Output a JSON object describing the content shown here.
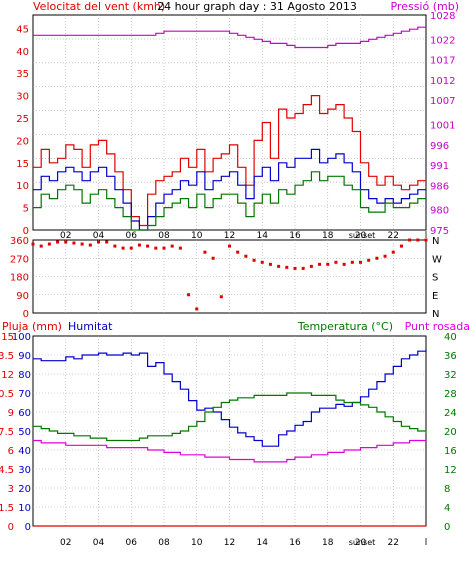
{
  "header": {
    "left_label": "Velocitat del vent (kmh)",
    "title": "24 hour graph day : 31 Agosto 2013",
    "right_label": "Pressió (mb)"
  },
  "x_axis": {
    "ticks": [
      "02",
      "04",
      "06",
      "08",
      "10",
      "12",
      "14",
      "16",
      "18",
      "20",
      "22"
    ],
    "sunset_label": "sunset"
  },
  "colors": {
    "wind_avg": "#0000cc",
    "wind_gust": "#e00000",
    "wind_low": "#007700",
    "pressure": "#cc00cc",
    "direction": "#e00000",
    "humidity": "#0000cc",
    "temperature": "#007700",
    "dewpoint": "#dd00dd",
    "rain": "#e00000",
    "grid": "#aaaaaa"
  },
  "chart_data": [
    {
      "type": "line",
      "ylabel_left": "Velocitat del vent (kmh)",
      "ylabel_right": "Pressió (mb)",
      "left_ticks": [
        "0",
        "5",
        "10",
        "15",
        "20",
        "25",
        "30",
        "35",
        "40",
        "45"
      ],
      "right_ticks": [
        "975",
        "980",
        "986",
        "991",
        "996",
        "1001",
        "1007",
        "1012",
        "1017",
        "1022",
        "1028"
      ],
      "ylim": [
        0,
        48
      ],
      "y2lim": [
        975,
        1028
      ],
      "x": [
        0,
        0.5,
        1,
        1.5,
        2,
        2.5,
        3,
        3.5,
        4,
        4.5,
        5,
        5.5,
        6,
        6.5,
        7,
        7.5,
        8,
        8.5,
        9,
        9.5,
        10,
        10.5,
        11,
        11.5,
        12,
        12.5,
        13,
        13.5,
        14,
        14.5,
        15,
        15.5,
        16,
        16.5,
        17,
        17.5,
        18,
        18.5,
        19,
        19.5,
        20,
        20.5,
        21,
        21.5,
        22,
        22.5,
        23,
        23.5,
        24
      ],
      "series": [
        {
          "role": "gust",
          "values": [
            14,
            18,
            15,
            16,
            19,
            18,
            14,
            19,
            20,
            17,
            13,
            9,
            3,
            1,
            8,
            11,
            12,
            13,
            16,
            14,
            18,
            13,
            16,
            17,
            19,
            14,
            10,
            20,
            24,
            16,
            27,
            25,
            26,
            28,
            30,
            26,
            27,
            28,
            25,
            22,
            15,
            12,
            10,
            12,
            10,
            9,
            10,
            11,
            11
          ]
        },
        {
          "role": "average",
          "values": [
            9,
            12,
            11,
            13,
            14,
            13,
            11,
            13,
            14,
            12,
            9,
            6,
            2,
            0,
            3,
            6,
            8,
            9,
            11,
            10,
            13,
            9,
            11,
            12,
            13,
            10,
            7,
            12,
            14,
            11,
            15,
            14,
            16,
            16,
            18,
            15,
            16,
            17,
            15,
            13,
            9,
            7,
            6,
            7,
            6,
            7,
            8,
            9,
            9
          ]
        },
        {
          "role": "low",
          "values": [
            5,
            8,
            7,
            9,
            10,
            9,
            6,
            8,
            9,
            7,
            5,
            3,
            0,
            0,
            1,
            3,
            5,
            6,
            7,
            5,
            8,
            5,
            7,
            8,
            8,
            6,
            3,
            6,
            8,
            6,
            9,
            8,
            10,
            11,
            13,
            11,
            12,
            12,
            10,
            9,
            5,
            4,
            4,
            6,
            5,
            5,
            6,
            7,
            7
          ]
        },
        {
          "role": "pressure",
          "axis": "right",
          "values": [
            1023,
            1023,
            1023,
            1023,
            1023,
            1023,
            1023,
            1023,
            1023,
            1023,
            1023,
            1023,
            1023,
            1023,
            1023,
            1023.5,
            1024,
            1024,
            1024,
            1024,
            1024,
            1024,
            1024,
            1024,
            1023.5,
            1023,
            1022.5,
            1022,
            1021.5,
            1021,
            1021,
            1020.5,
            1020,
            1020,
            1020,
            1020,
            1020.5,
            1021,
            1021,
            1021,
            1021.5,
            1022,
            1022.5,
            1023,
            1023.5,
            1024,
            1024.5,
            1025,
            1025
          ]
        }
      ]
    },
    {
      "type": "scatter",
      "left_ticks": [
        "0",
        "90",
        "180",
        "270",
        "360"
      ],
      "right_ticks": [
        "N",
        "E",
        "S",
        "W",
        "N"
      ],
      "ylim": [
        0,
        360
      ],
      "x": [
        0,
        0.5,
        1,
        1.5,
        2,
        2.5,
        3,
        3.5,
        4,
        4.5,
        5,
        5.5,
        6,
        6.5,
        7,
        7.5,
        8,
        8.5,
        9,
        9.5,
        10,
        10.5,
        11,
        11.5,
        12,
        12.5,
        13,
        13.5,
        14,
        14.5,
        15,
        15.5,
        16,
        16.5,
        17,
        17.5,
        18,
        18.5,
        19,
        19.5,
        20,
        20.5,
        21,
        21.5,
        22,
        22.5,
        23,
        23.5,
        24
      ],
      "values": [
        340,
        330,
        340,
        350,
        350,
        345,
        340,
        335,
        350,
        350,
        330,
        320,
        320,
        335,
        330,
        320,
        320,
        330,
        320,
        90,
        20,
        300,
        270,
        80,
        330,
        300,
        280,
        260,
        250,
        240,
        230,
        225,
        220,
        220,
        230,
        240,
        240,
        250,
        240,
        250,
        250,
        260,
        270,
        280,
        300,
        330,
        360,
        360,
        360
      ]
    },
    {
      "type": "line",
      "ylabel_left": "Pluja (mm)",
      "ylabel_left2": "Humitat",
      "ylabel_right": "Temperatura (°C)",
      "ylabel_right2": "Punt rosada",
      "left_ticks": [
        "0",
        "1.5",
        "3",
        "4.5",
        "6",
        "7.5",
        "9",
        "10.5",
        "12",
        "13.5",
        "15"
      ],
      "left2_ticks": [
        "0",
        "10",
        "20",
        "30",
        "40",
        "50",
        "60",
        "70",
        "80",
        "90",
        "100"
      ],
      "right_ticks": [
        "0",
        "4",
        "8",
        "12",
        "16",
        "20",
        "24",
        "28",
        "32",
        "36",
        "40"
      ],
      "ylim": [
        0,
        100
      ],
      "y2lim": [
        0,
        40
      ],
      "x": [
        0,
        0.5,
        1,
        1.5,
        2,
        2.5,
        3,
        3.5,
        4,
        4.5,
        5,
        5.5,
        6,
        6.5,
        7,
        7.5,
        8,
        8.5,
        9,
        9.5,
        10,
        10.5,
        11,
        11.5,
        12,
        12.5,
        13,
        13.5,
        14,
        14.5,
        15,
        15.5,
        16,
        16.5,
        17,
        17.5,
        18,
        18.5,
        19,
        19.5,
        20,
        20.5,
        21,
        21.5,
        22,
        22.5,
        23,
        23.5,
        24
      ],
      "series": [
        {
          "role": "humidity",
          "values": [
            88,
            87,
            87,
            87,
            89,
            88,
            90,
            90,
            91,
            90,
            90,
            91,
            90,
            91,
            84,
            86,
            80,
            76,
            72,
            66,
            61,
            62,
            60,
            56,
            52,
            49,
            47,
            45,
            42,
            42,
            48,
            50,
            53,
            55,
            60,
            62,
            62,
            64,
            63,
            65,
            68,
            72,
            76,
            80,
            84,
            88,
            90,
            92,
            93
          ]
        },
        {
          "role": "temperature",
          "axis": "right",
          "values": [
            21,
            20.5,
            20,
            19.5,
            19.5,
            19,
            19,
            18.5,
            18.5,
            18,
            18,
            18,
            18,
            18.5,
            19,
            19,
            19,
            19.5,
            20,
            21,
            22,
            24,
            25,
            26,
            26.5,
            27,
            27,
            27.5,
            27.5,
            27.5,
            27.5,
            28,
            28,
            28,
            27.5,
            27.5,
            27.5,
            26.5,
            26,
            26,
            25.5,
            25,
            24,
            23,
            22,
            21,
            20.5,
            20,
            19.5
          ]
        },
        {
          "role": "dewpoint",
          "axis": "right",
          "values": [
            18,
            17.5,
            17.5,
            17.5,
            17,
            17,
            17,
            17,
            17,
            16.5,
            16.5,
            16.5,
            16.5,
            16.5,
            16,
            16,
            15.5,
            15.5,
            15,
            15,
            15,
            14.5,
            14.5,
            14.5,
            14,
            14,
            14,
            13.5,
            13.5,
            13.5,
            13.5,
            14,
            14.5,
            14.5,
            15,
            15,
            15.5,
            15.5,
            16,
            16,
            16.5,
            16.5,
            17,
            17,
            17.5,
            17.5,
            18,
            18,
            18
          ]
        },
        {
          "role": "rain",
          "values": [
            0,
            0,
            0,
            0,
            0,
            0,
            0,
            0,
            0,
            0,
            0,
            0,
            0,
            0,
            0,
            0,
            0,
            0,
            0,
            0,
            0,
            0,
            0,
            0,
            0,
            0,
            0,
            0,
            0,
            0,
            0,
            0,
            0,
            0,
            0,
            0,
            0,
            0,
            0,
            0,
            0,
            0,
            0,
            0,
            0,
            0,
            0,
            0,
            0
          ]
        }
      ]
    }
  ]
}
